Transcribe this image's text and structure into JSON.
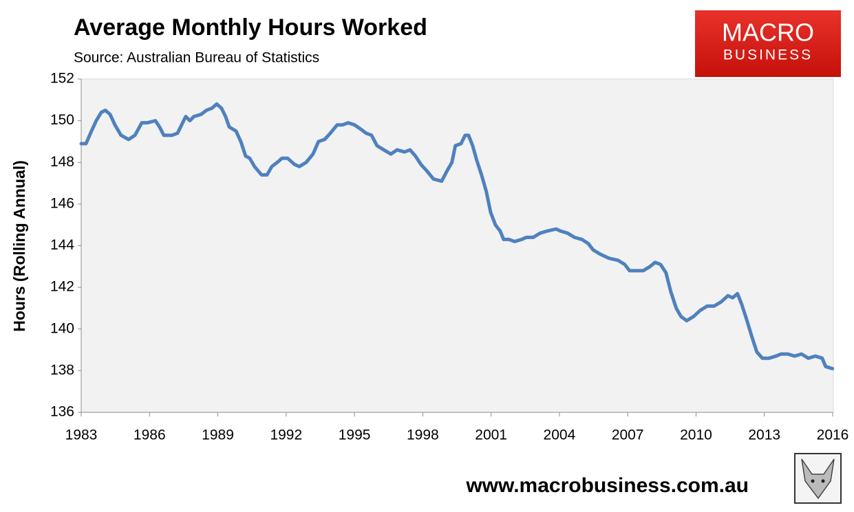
{
  "chart_data": {
    "type": "line",
    "title": "Average Monthly Hours Worked",
    "subtitle": "Source: Australian Bureau of Statistics",
    "y_label": "Hours (Rolling Annual)",
    "color": "#4f81bd",
    "x": [
      1983.0,
      1983.21,
      1983.45,
      1983.66,
      1983.88,
      1984.06,
      1984.27,
      1984.48,
      1984.75,
      1985.08,
      1985.36,
      1985.66,
      1985.9,
      1986.26,
      1986.44,
      1986.63,
      1986.99,
      1987.23,
      1987.59,
      1987.77,
      1987.95,
      1988.26,
      1988.5,
      1988.74,
      1988.95,
      1989.16,
      1989.34,
      1989.5,
      1989.8,
      1990.01,
      1990.22,
      1990.4,
      1990.61,
      1990.92,
      1991.16,
      1991.37,
      1991.61,
      1991.82,
      1992.06,
      1992.37,
      1992.58,
      1992.88,
      1993.18,
      1993.42,
      1993.69,
      1993.94,
      1994.24,
      1994.48,
      1994.72,
      1995.0,
      1995.27,
      1995.51,
      1995.75,
      1995.99,
      1996.29,
      1996.6,
      1996.87,
      1997.2,
      1997.44,
      1997.68,
      1997.92,
      1998.17,
      1998.47,
      1998.83,
      1999.07,
      1999.28,
      1999.43,
      1999.68,
      1999.86,
      2000.01,
      2000.19,
      2000.37,
      2000.58,
      2000.79,
      2000.98,
      2001.19,
      2001.4,
      2001.55,
      2001.79,
      2002.03,
      2002.34,
      2002.55,
      2002.85,
      2003.15,
      2003.45,
      2003.85,
      2004.06,
      2004.36,
      2004.66,
      2004.99,
      2005.27,
      2005.48,
      2005.78,
      2006.17,
      2006.57,
      2006.87,
      2007.08,
      2007.38,
      2007.68,
      2007.98,
      2008.2,
      2008.44,
      2008.68,
      2008.89,
      2009.13,
      2009.34,
      2009.59,
      2009.89,
      2010.19,
      2010.49,
      2010.79,
      2011.1,
      2011.4,
      2011.61,
      2011.82,
      2012.0,
      2012.21,
      2012.46,
      2012.67,
      2012.91,
      2013.21,
      2013.51,
      2013.73,
      2014.03,
      2014.33,
      2014.63,
      2014.93,
      2015.24,
      2015.54,
      2015.69,
      2015.99
    ],
    "values": [
      148.9,
      148.9,
      149.5,
      150.0,
      150.4,
      150.5,
      150.3,
      149.8,
      149.3,
      149.1,
      149.3,
      149.9,
      149.9,
      150.0,
      149.7,
      149.3,
      149.3,
      149.4,
      150.2,
      150.0,
      150.2,
      150.3,
      150.5,
      150.6,
      150.8,
      150.6,
      150.2,
      149.7,
      149.5,
      149.0,
      148.3,
      148.2,
      147.8,
      147.4,
      147.4,
      147.8,
      148.0,
      148.2,
      148.2,
      147.9,
      147.8,
      148.0,
      148.4,
      149.0,
      149.1,
      149.4,
      149.8,
      149.8,
      149.9,
      149.8,
      149.6,
      149.4,
      149.3,
      148.8,
      148.6,
      148.4,
      148.6,
      148.5,
      148.6,
      148.3,
      147.9,
      147.6,
      147.2,
      147.1,
      147.6,
      148.0,
      148.8,
      148.9,
      149.3,
      149.3,
      148.8,
      148.1,
      147.4,
      146.6,
      145.6,
      145.0,
      144.7,
      144.3,
      144.3,
      144.2,
      144.3,
      144.4,
      144.4,
      144.6,
      144.7,
      144.8,
      144.7,
      144.6,
      144.4,
      144.3,
      144.1,
      143.8,
      143.6,
      143.4,
      143.3,
      143.1,
      142.8,
      142.8,
      142.8,
      143.0,
      143.2,
      143.1,
      142.7,
      141.8,
      141.0,
      140.6,
      140.4,
      140.6,
      140.9,
      141.1,
      141.1,
      141.3,
      141.6,
      141.5,
      141.7,
      141.2,
      140.5,
      139.6,
      138.9,
      138.6,
      138.6,
      138.7,
      138.8,
      138.8,
      138.7,
      138.8,
      138.6,
      138.7,
      138.6,
      138.2,
      138.1
    ],
    "xlim": [
      1983,
      2016
    ],
    "xticks": [
      1983,
      1986,
      1989,
      1992,
      1995,
      1998,
      2001,
      2004,
      2007,
      2010,
      2013,
      2016
    ],
    "ylim": [
      136,
      152
    ],
    "yticks": [
      136,
      138,
      140,
      142,
      144,
      146,
      148,
      150,
      152
    ]
  },
  "branding": {
    "logo_line1": "MACRO",
    "logo_line2": "BUSINESS",
    "website": "www.macrobusiness.com.au"
  }
}
